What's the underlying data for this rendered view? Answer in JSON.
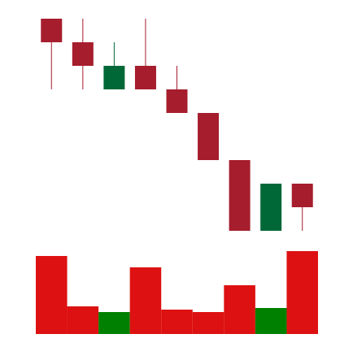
{
  "chart_data": {
    "type": "candlestick",
    "open": [
      277,
      248,
      190,
      219,
      190,
      161,
      103,
      16,
      74
    ],
    "high": [
      277,
      277,
      248,
      277,
      219,
      161,
      103,
      74,
      74
    ],
    "low": [
      190,
      190,
      190,
      190,
      161,
      103,
      16,
      16,
      16
    ],
    "close": [
      248,
      219,
      219,
      190,
      161,
      103,
      16,
      74,
      45
    ],
    "volume": [
      96,
      34,
      27,
      82,
      30,
      27,
      60,
      32,
      102
    ],
    "up_color": "#006837",
    "down_color": "#a61d2d",
    "volume_up_color": "#008000",
    "volume_down_color": "#dd1111",
    "ylim": [
      0,
      300
    ],
    "volume_ylim": [
      0,
      120
    ]
  }
}
